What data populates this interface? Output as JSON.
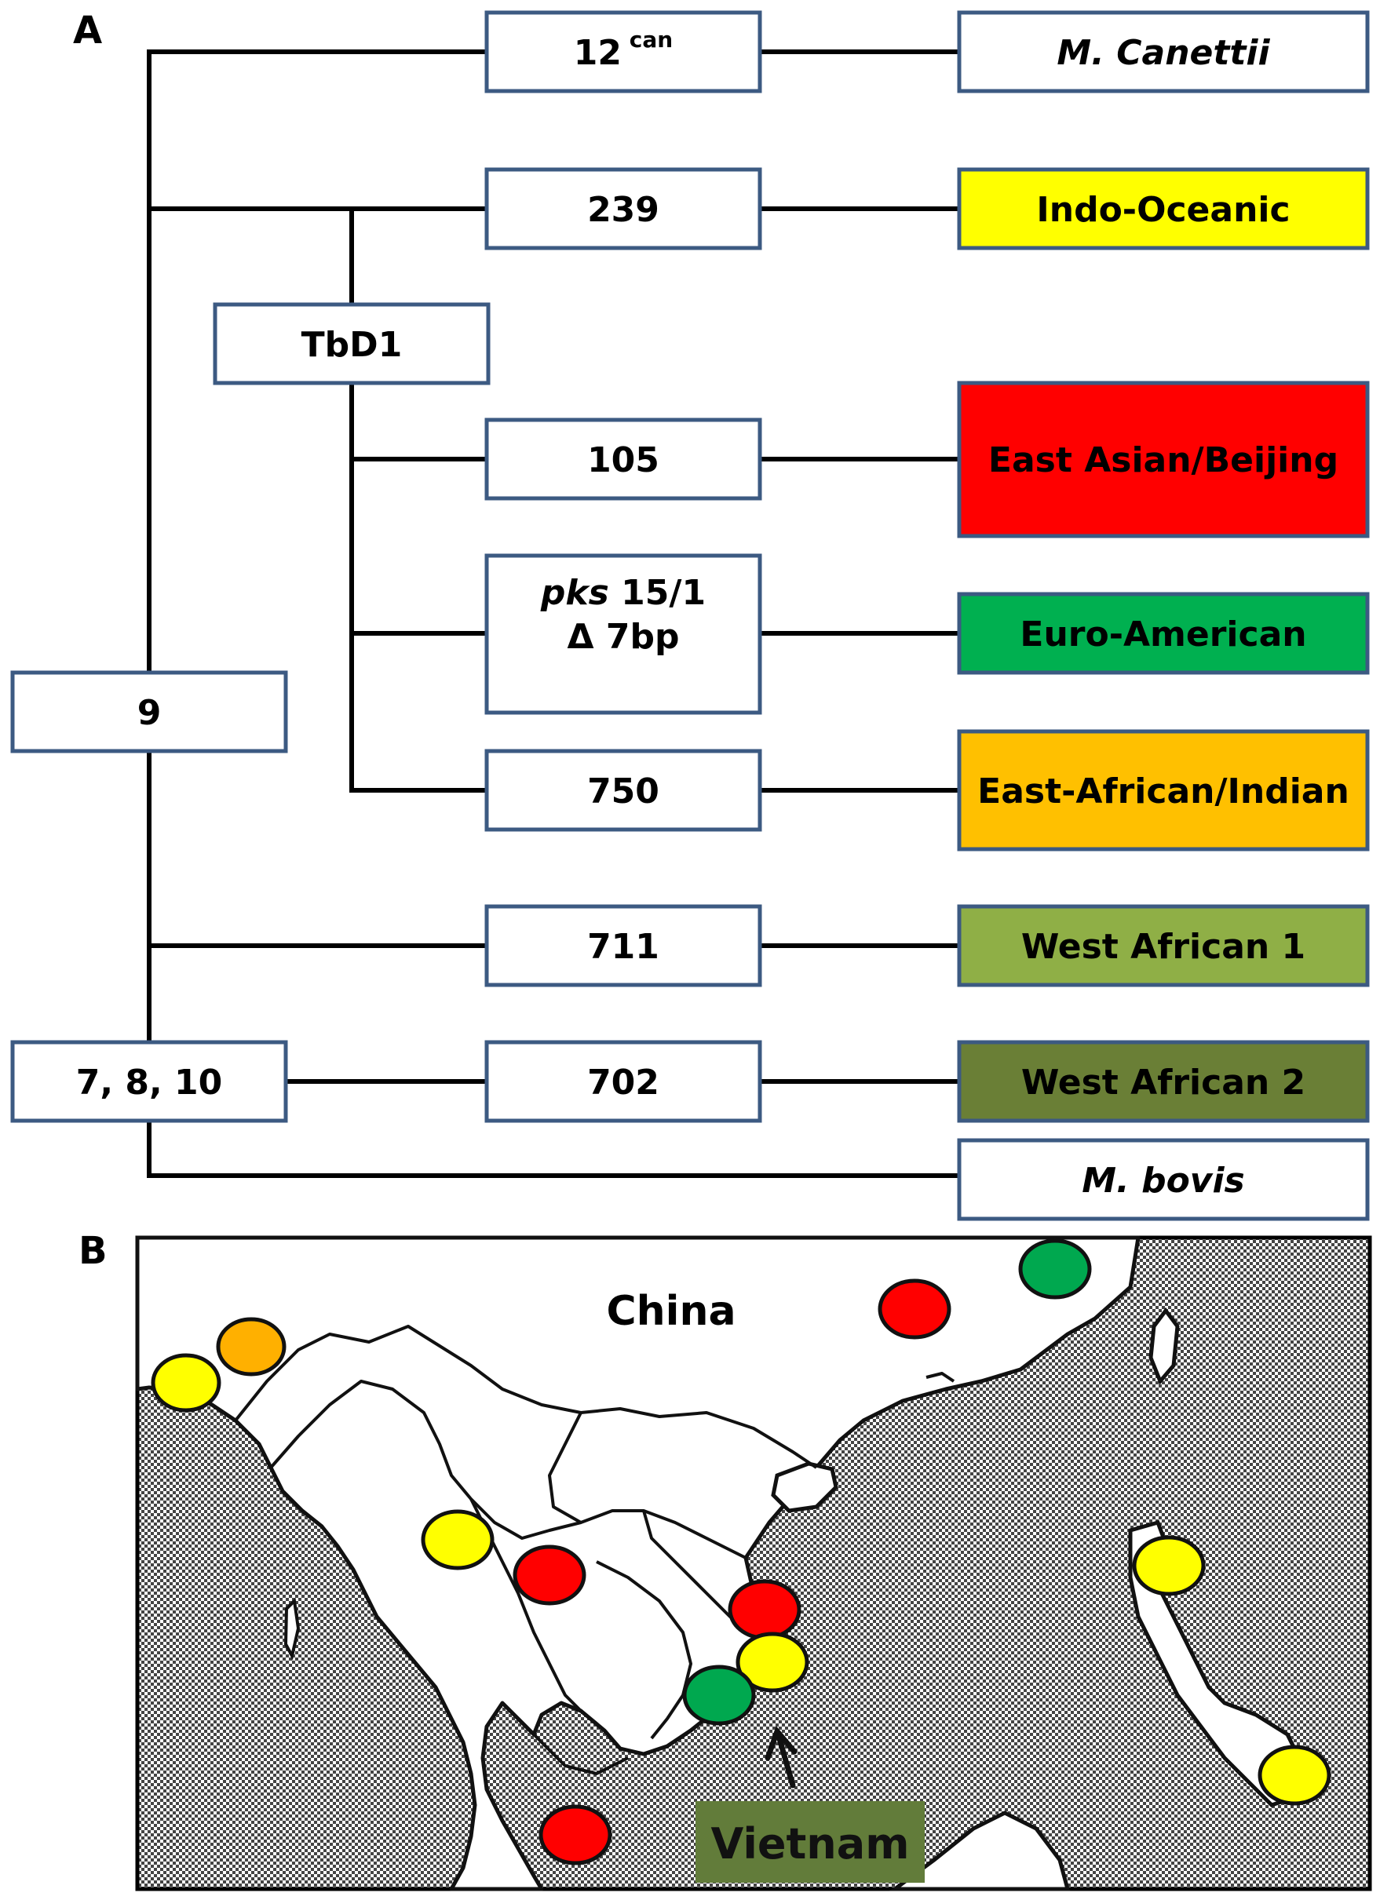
{
  "panels": {
    "a": "A",
    "b": "B"
  },
  "tree": {
    "nodes": {
      "n12": "12",
      "n12_sup": "can",
      "n239": "239",
      "tbd1": "TbD1",
      "n105": "105",
      "pks_italic": "pks",
      "pks_rest": " 15/1",
      "pks_line2": "Δ 7bp",
      "n750": "750",
      "n9": "9",
      "n711": "711",
      "n7810": "7, 8, 10",
      "n702": "702"
    },
    "lineages": [
      {
        "key": "canettii",
        "label": "M. Canettii",
        "color": "#ffffff",
        "italic": true
      },
      {
        "key": "indo",
        "label": "Indo-Oceanic",
        "color": "#ffff00"
      },
      {
        "key": "beijing",
        "label": "East Asian/Beijing",
        "color": "#ff0000"
      },
      {
        "key": "euro",
        "label": "Euro-American",
        "color": "#00b050"
      },
      {
        "key": "eafr",
        "label": "East-African/Indian",
        "color": "#ffc000"
      },
      {
        "key": "waf1",
        "label": "West African 1",
        "color": "#8faf46"
      },
      {
        "key": "waf2",
        "label": "West African 2",
        "color": "#6a7f36"
      },
      {
        "key": "bovis",
        "label": "M. bovis",
        "color": "#ffffff",
        "italic": true
      }
    ],
    "box_border_color": "#3c5a82"
  },
  "map": {
    "country_label": "China",
    "arrow_label": "Vietnam",
    "arrow_label_bg": "#627c3a",
    "colors": {
      "yellow": "#ffff00",
      "orange": "#ffb000",
      "red": "#ff0000",
      "green": "#00a84f"
    },
    "markers": [
      {
        "lineage": "indo",
        "color": "yellow"
      },
      {
        "lineage": "eafr",
        "color": "orange"
      },
      {
        "lineage": "beijing",
        "color": "red"
      },
      {
        "lineage": "euro",
        "color": "green"
      },
      {
        "lineage": "indo",
        "color": "yellow"
      },
      {
        "lineage": "beijing",
        "color": "red"
      },
      {
        "lineage": "beijing",
        "color": "red"
      },
      {
        "lineage": "indo",
        "color": "yellow"
      },
      {
        "lineage": "euro",
        "color": "green"
      },
      {
        "lineage": "indo",
        "color": "yellow"
      },
      {
        "lineage": "indo",
        "color": "yellow"
      },
      {
        "lineage": "beijing",
        "color": "red"
      }
    ]
  }
}
